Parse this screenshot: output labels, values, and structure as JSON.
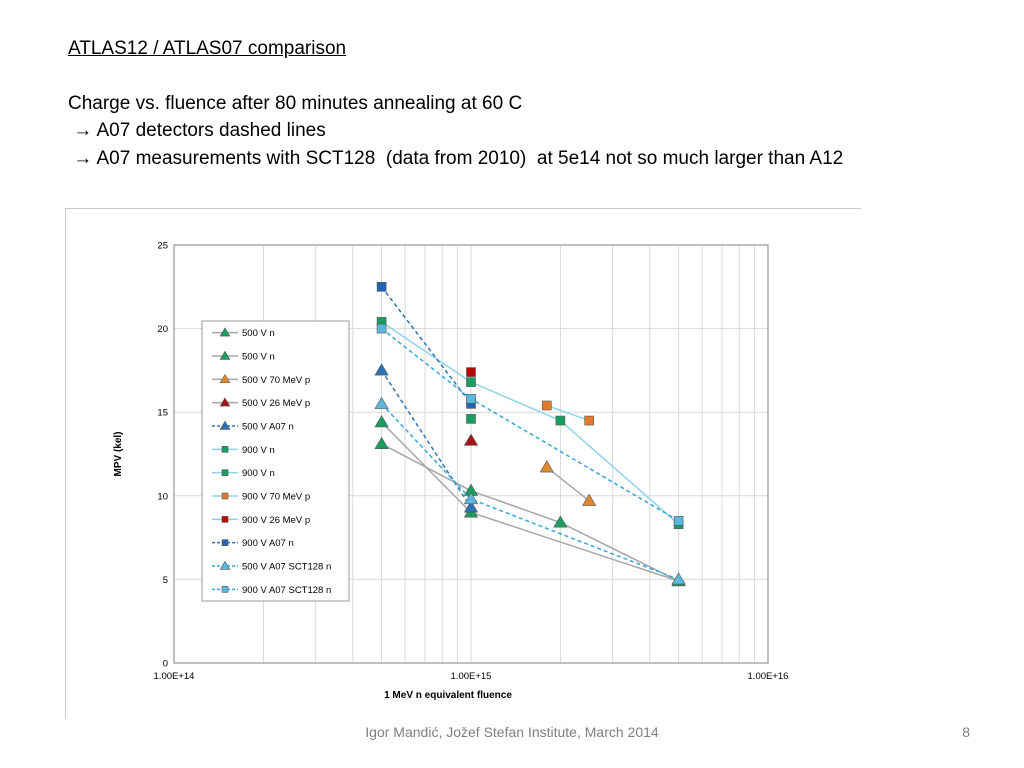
{
  "slide": {
    "title": "ATLAS12 / ATLAS07 comparison",
    "lines": [
      "Charge vs. fluence after 80 minutes annealing at 60 C",
      " → A07 detectors dashed lines",
      " → A07 measurements with SCT128  (data from 2010)  at 5e14 not so much larger than A12"
    ],
    "footer": "Igor Mandić, Jožef Stefan Institute, March 2014",
    "page_number": "8"
  },
  "chart_data": {
    "type": "scatter",
    "title": "",
    "xlabel": "1 MeV n equivalent fluence",
    "ylabel": "MPV (kel)",
    "xscale": "log",
    "xlim": [
      100000000000000.0,
      1e+16
    ],
    "ylim": [
      0,
      25
    ],
    "x_ticks": [
      "1.00E+14",
      "1.00E+15",
      "1.00E+16"
    ],
    "y_ticks": [
      "0",
      "5",
      "10",
      "15",
      "20",
      "25"
    ],
    "grid": true,
    "legend_position": "left",
    "series": [
      {
        "name": "500 V n",
        "color": "#a6a6a6",
        "marker": "triangle",
        "marker_color": "#1a9e5f",
        "dashed": false,
        "x": [
          500000000000000.0,
          1000000000000000.0,
          2000000000000000.0,
          5000000000000000.0
        ],
        "y": [
          13.1,
          10.3,
          8.4,
          4.9
        ]
      },
      {
        "name": "500 V n",
        "color": "#a6a6a6",
        "marker": "triangle",
        "marker_color": "#1a9e5f",
        "dashed": false,
        "x": [
          500000000000000.0,
          1000000000000000.0,
          5000000000000000.0
        ],
        "y": [
          14.4,
          9.0,
          4.9
        ]
      },
      {
        "name": "500 V 70 MeV p",
        "color": "#a6a6a6",
        "marker": "triangle",
        "marker_color": "#e0882c",
        "dashed": false,
        "x": [
          1800000000000000.0,
          2500000000000000.0
        ],
        "y": [
          11.7,
          9.7
        ]
      },
      {
        "name": "500 V 26 MeV p",
        "color": "#a6a6a6",
        "marker": "triangle",
        "marker_color": "#a31515",
        "dashed": false,
        "x": [
          1000000000000000.0
        ],
        "y": [
          13.3
        ]
      },
      {
        "name": "500 V A07 n",
        "color": "#2e74b5",
        "marker": "triangle",
        "marker_color": "#2e74b5",
        "dashed": true,
        "x": [
          500000000000000.0,
          1000000000000000.0
        ],
        "y": [
          17.5,
          9.3
        ]
      },
      {
        "name": "900 V n",
        "color": "#8fd3e8",
        "marker": "square",
        "marker_color": "#1a9e5f",
        "dashed": false,
        "x": [
          500000000000000.0,
          1000000000000000.0,
          2000000000000000.0,
          5000000000000000.0
        ],
        "y": [
          20.4,
          16.8,
          14.5,
          8.3
        ]
      },
      {
        "name": "900 V n",
        "color": "#8fd3e8",
        "marker": "square",
        "marker_color": "#1a9e5f",
        "dashed": false,
        "x": [
          1000000000000000.0
        ],
        "y": [
          14.6
        ]
      },
      {
        "name": "900 V 70 MeV p",
        "color": "#8fd3e8",
        "marker": "square",
        "marker_color": "#e07b2c",
        "dashed": false,
        "x": [
          1800000000000000.0,
          2500000000000000.0
        ],
        "y": [
          15.4,
          14.5
        ]
      },
      {
        "name": "900 V 26 MeV p",
        "color": "#8fd3e8",
        "marker": "square",
        "marker_color": "#c00000",
        "dashed": false,
        "x": [
          1000000000000000.0
        ],
        "y": [
          17.4
        ]
      },
      {
        "name": "900 V A07 n",
        "color": "#2e74b5",
        "marker": "square",
        "marker_color": "#2166b0",
        "dashed": true,
        "x": [
          500000000000000.0,
          1000000000000000.0
        ],
        "y": [
          22.5,
          15.5
        ]
      },
      {
        "name": "500 V A07 SCT128 n",
        "color": "#36a8d8",
        "marker": "triangle",
        "marker_color": "#5bb8dc",
        "dashed": true,
        "x": [
          500000000000000.0,
          1000000000000000.0,
          5000000000000000.0
        ],
        "y": [
          15.5,
          9.8,
          5.0
        ]
      },
      {
        "name": "900 V A07 SCT128 n",
        "color": "#36a8d8",
        "marker": "square",
        "marker_color": "#5bb8dc",
        "dashed": true,
        "x": [
          500000000000000.0,
          1000000000000000.0,
          5000000000000000.0
        ],
        "y": [
          20.0,
          15.8,
          8.5
        ]
      }
    ]
  }
}
